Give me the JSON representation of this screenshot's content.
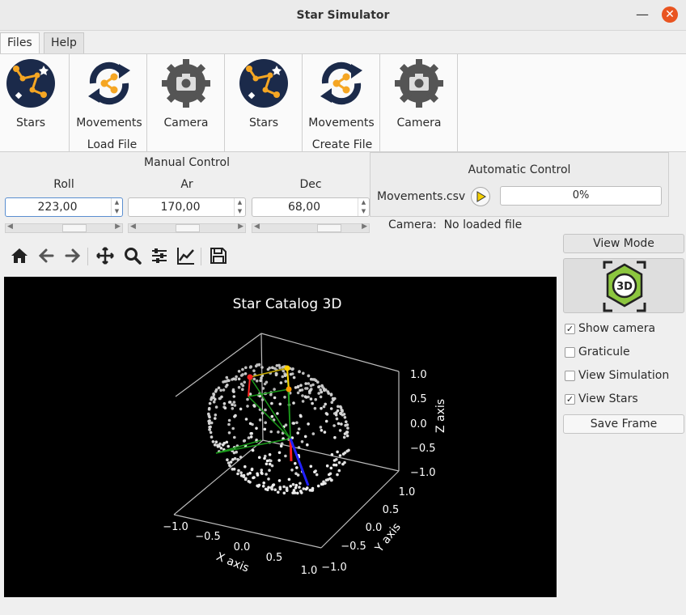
{
  "window": {
    "title": "Star Simulator",
    "minimize_glyph": "—",
    "close_glyph": "✕"
  },
  "menu": {
    "tabs": [
      {
        "label": "Files"
      },
      {
        "label": "Help"
      }
    ]
  },
  "ribbon": {
    "load_group": "Load File",
    "create_group": "Create File",
    "load_buttons": [
      {
        "label": "Stars",
        "icon": "constellation-icon"
      },
      {
        "label": "Movements",
        "icon": "rotate-share-icon"
      },
      {
        "label": "Camera",
        "icon": "gear-camera-icon"
      }
    ],
    "create_buttons": [
      {
        "label": "Stars",
        "icon": "constellation-icon"
      },
      {
        "label": "Movements",
        "icon": "rotate-share-icon"
      },
      {
        "label": "Camera",
        "icon": "gear-camera-icon"
      }
    ]
  },
  "manual": {
    "title": "Manual Control",
    "roll": {
      "label": "Roll",
      "value": "223,00"
    },
    "ar": {
      "label": "Ar",
      "value": "170,00"
    },
    "dec": {
      "label": "Dec",
      "value": "68,00"
    },
    "arrow_up": "▲",
    "arrow_down": "▼",
    "arrow_left": "◀",
    "arrow_right": "▶"
  },
  "automatic": {
    "title": "Automatic Control",
    "file": "Movements.csv",
    "progress_text": "0%",
    "progress_value": 0
  },
  "camera_status": {
    "label": "Camera:",
    "value": "No loaded file"
  },
  "toolbar": {
    "icons": [
      "home-icon",
      "back-icon",
      "forward-icon",
      "pan-icon",
      "zoom-icon",
      "configure-subplots-icon",
      "edit-axis-icon",
      "save-icon"
    ]
  },
  "chart_data": {
    "type": "scatter",
    "title": "Star Catalog 3D",
    "xlabel": "X axis",
    "ylabel": "Y axis",
    "zlabel": "Z axis",
    "xticks": [
      "−1.0",
      "−0.5",
      "0.0",
      "0.5",
      "1.0"
    ],
    "yticks": [
      "−1.0",
      "−0.5",
      "0.0",
      "0.5",
      "1.0"
    ],
    "zticks": [
      "−1.0",
      "−0.5",
      "0.0",
      "0.5",
      "1.0"
    ],
    "xlim": [
      -1,
      1
    ],
    "ylim": [
      -1,
      1
    ],
    "zlim": [
      -1,
      1
    ],
    "star_count": 450,
    "star_color": "#ffffff",
    "background": "#000000",
    "camera_frame_color": "#1a9a1a",
    "axes_vectors": [
      {
        "name": "x",
        "color": "#ff2020"
      },
      {
        "name": "y",
        "color": "#2020ff"
      },
      {
        "name": "z",
        "color": "#ffd000"
      }
    ]
  },
  "right_panel": {
    "view_mode": "View Mode",
    "view_icon": "3d-cube-icon",
    "view_icon_text": "3D",
    "checks": [
      {
        "label": "Show camera",
        "checked": true
      },
      {
        "label": "Graticule",
        "checked": false
      },
      {
        "label": "View Simulation",
        "checked": false
      },
      {
        "label": "View Stars",
        "checked": true
      }
    ],
    "check_mark": "✓",
    "save_frame": "Save Frame"
  },
  "colors": {
    "accent": "#e95420",
    "icon_navy": "#1b2a4a",
    "icon_orange": "#f5a623",
    "icon_gear": "#555555"
  }
}
